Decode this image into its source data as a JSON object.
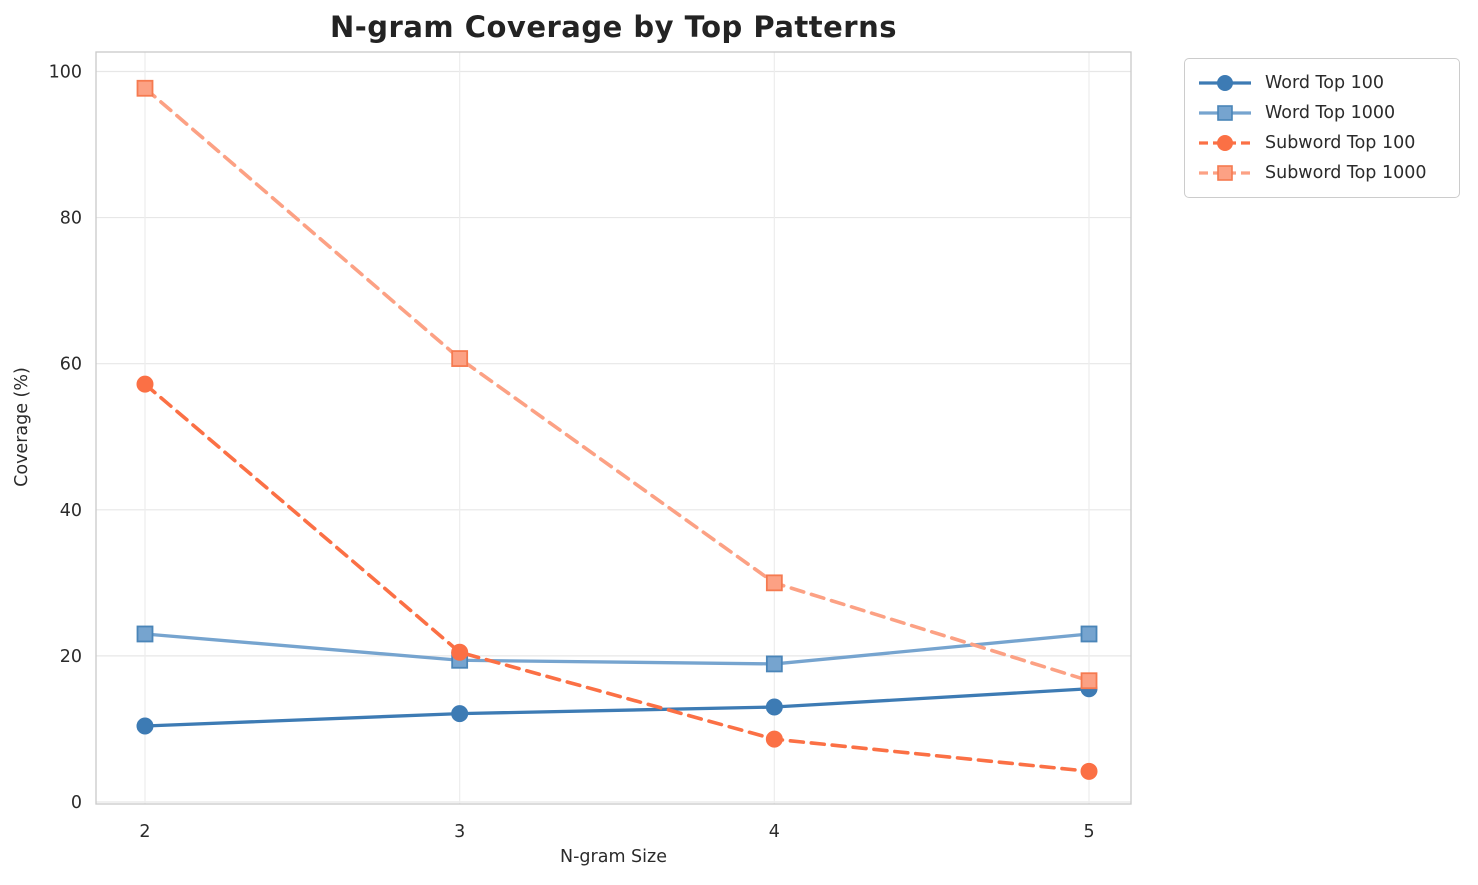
{
  "chart": {
    "title": "N-gram Coverage by Top Patterns",
    "xlabel": "N-gram Size",
    "ylabel": "Coverage (%)"
  },
  "chart_data": {
    "type": "line",
    "title": "N-gram Coverage by Top Patterns",
    "xlabel": "N-gram Size",
    "ylabel": "Coverage (%)",
    "x": [
      2,
      3,
      4,
      5
    ],
    "x_tick_labels": [
      "2",
      "3",
      "4",
      "5"
    ],
    "y_ticks": [
      0,
      20,
      40,
      60,
      80,
      100
    ],
    "xlim": [
      1.84,
      5.14
    ],
    "ylim": [
      0,
      100
    ],
    "grid": true,
    "legend_position": "outside-upper-right",
    "series": [
      {
        "name": "Word Top 100",
        "values": [
          10.4,
          12.1,
          13.0,
          15.5
        ],
        "color": "#3D7BB4",
        "marker_edge": "#3D7BB4",
        "marker": "circle",
        "line_style": "solid"
      },
      {
        "name": "Word Top 1000",
        "values": [
          23.0,
          19.4,
          18.9,
          23.0
        ],
        "color": "#76A4CF",
        "marker_edge": "#4A85B8",
        "marker": "square",
        "line_style": "solid"
      },
      {
        "name": "Subword Top 100",
        "values": [
          57.2,
          20.5,
          8.6,
          4.2
        ],
        "color": "#FB7045",
        "marker_edge": "#FB7045",
        "marker": "circle",
        "line_style": "dashed"
      },
      {
        "name": "Subword Top 1000",
        "values": [
          97.7,
          60.7,
          30.0,
          16.6
        ],
        "color": "#FCA184",
        "marker_edge": "#F57A50",
        "marker": "square",
        "line_style": "dashed"
      }
    ]
  }
}
